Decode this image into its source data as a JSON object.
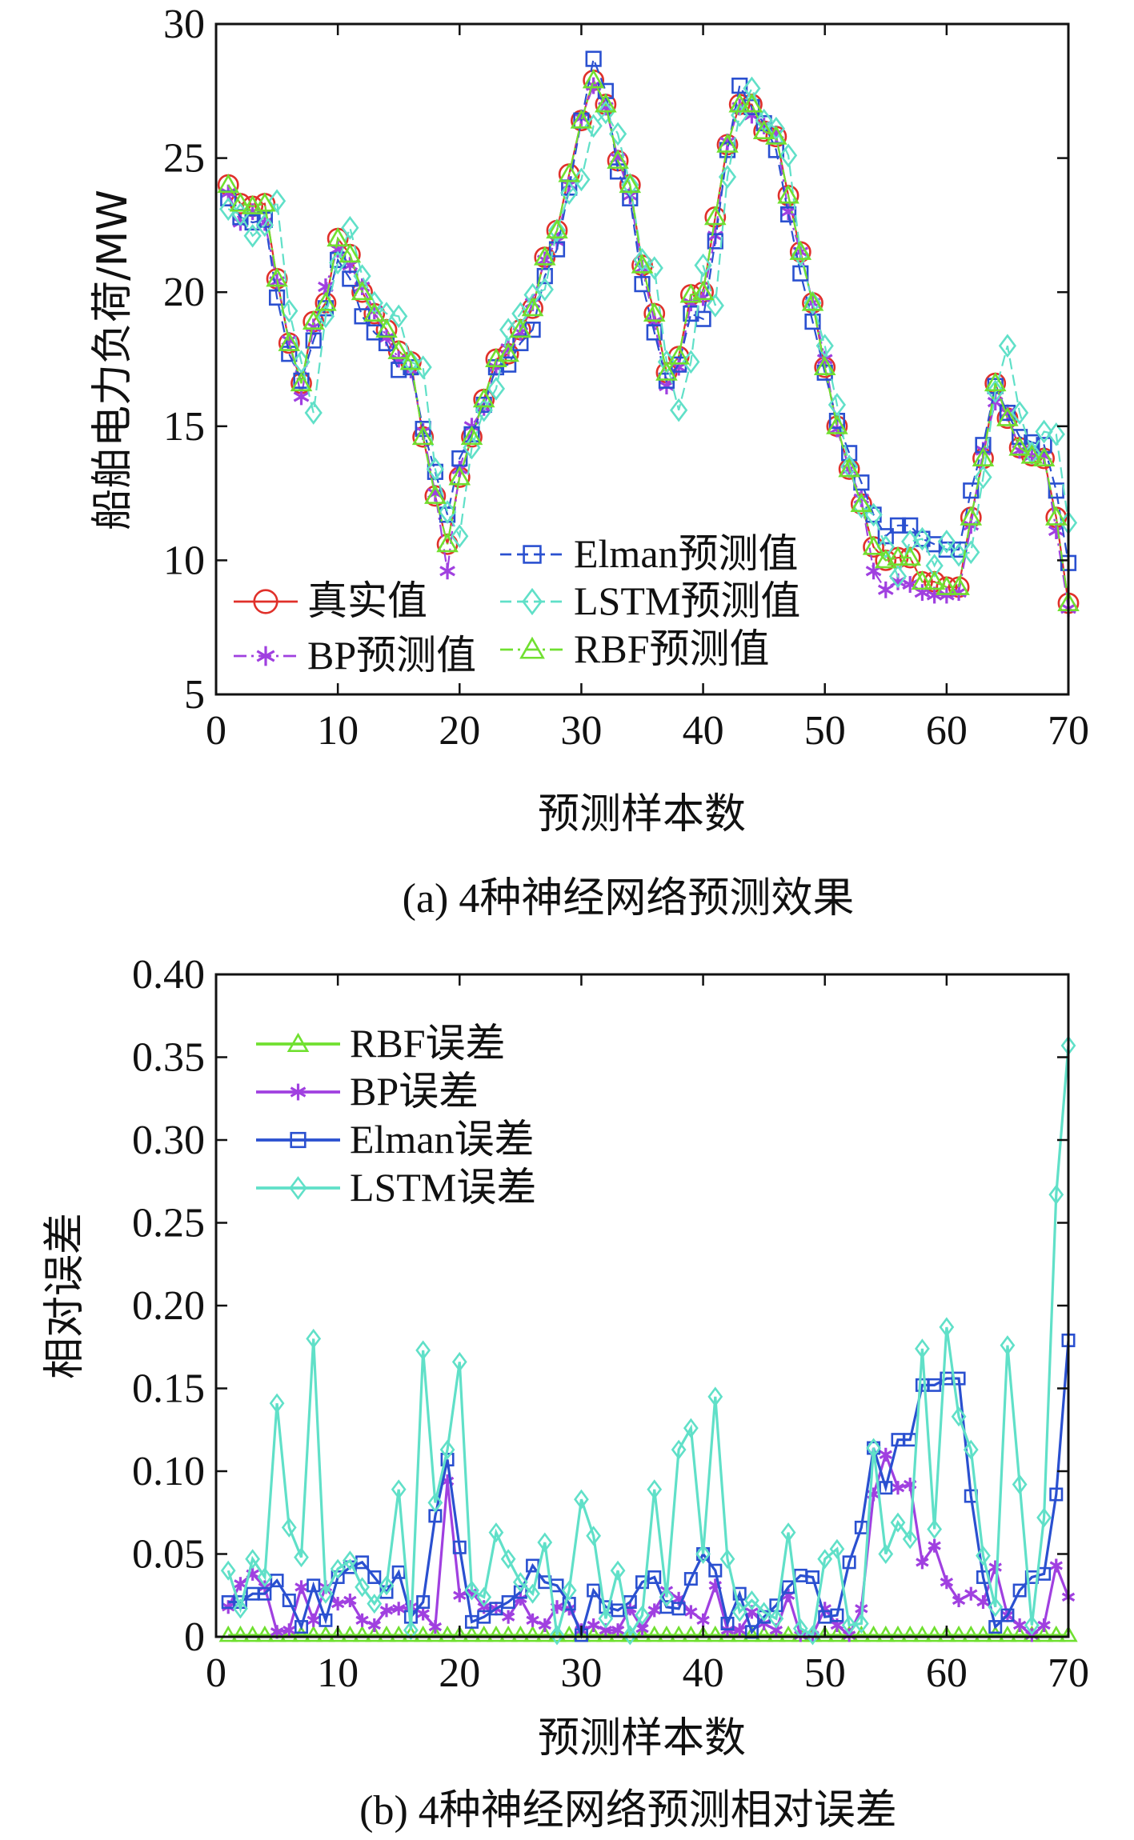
{
  "chart_data": [
    {
      "type": "line",
      "caption": "(a) 4种神经网络预测效果",
      "xlabel": "预测样本数",
      "ylabel": "船舶电力负荷/MW",
      "xlim": [
        0,
        70
      ],
      "ylim": [
        5,
        30
      ],
      "xticks": [
        "0",
        "10",
        "20",
        "30",
        "40",
        "50",
        "60",
        "70"
      ],
      "yticks": [
        "5",
        "10",
        "15",
        "20",
        "25",
        "30"
      ],
      "grid": false,
      "legend_placement": "lower-left",
      "series": [
        {
          "name": "真实值",
          "color": "#e0302a",
          "marker": "circle",
          "dash": "solid",
          "values": [
            24.0,
            23.3,
            23.2,
            23.3,
            20.5,
            18.1,
            16.6,
            18.9,
            19.6,
            22.0,
            21.4,
            20.0,
            19.2,
            18.6,
            17.8,
            17.4,
            14.6,
            12.4,
            10.6,
            13.1,
            14.6,
            16.0,
            17.5,
            17.7,
            18.6,
            19.4,
            21.3,
            22.3,
            24.4,
            26.4,
            27.9,
            27.0,
            24.9,
            24.0,
            21.0,
            19.2,
            17.0,
            17.6,
            19.9,
            20.0,
            22.8,
            25.5,
            27.0,
            27.0,
            26.0,
            25.8,
            23.6,
            21.5,
            19.6,
            17.2,
            15.0,
            13.4,
            12.1,
            10.5,
            10.0,
            10.1,
            10.1,
            9.2,
            9.2,
            9.0,
            9.0,
            11.6,
            13.8,
            16.6,
            15.3,
            14.2,
            13.9,
            13.8,
            11.6,
            8.4
          ]
        },
        {
          "name": "BP预测值",
          "color": "#a040e0",
          "marker": "asterisk",
          "dash": "dashdot",
          "values": [
            23.7,
            22.6,
            23.0,
            22.6,
            20.4,
            18.2,
            16.1,
            18.7,
            20.2,
            21.6,
            21.0,
            20.2,
            19.3,
            18.3,
            17.5,
            17.1,
            14.8,
            12.5,
            9.6,
            13.4,
            15.0,
            15.7,
            17.2,
            17.9,
            18.5,
            19.6,
            21.2,
            21.9,
            24.0,
            26.5,
            27.7,
            26.9,
            25.0,
            23.6,
            20.9,
            18.9,
            16.5,
            17.2,
            19.6,
            19.8,
            22.1,
            25.6,
            26.9,
            26.6,
            26.2,
            25.9,
            23.0,
            21.5,
            19.6,
            17.5,
            14.9,
            13.4,
            12.3,
            9.6,
            8.9,
            9.2,
            9.1,
            8.8,
            8.7,
            8.7,
            8.8,
            11.3,
            14.1,
            15.9,
            15.5,
            14.1,
            13.9,
            13.9,
            11.1,
            8.2
          ]
        },
        {
          "name": "Elman预测值",
          "color": "#2a50d0",
          "marker": "square",
          "dash": "dashed",
          "values": [
            23.5,
            22.8,
            22.6,
            22.7,
            19.8,
            17.7,
            16.7,
            18.2,
            19.4,
            21.2,
            20.5,
            19.1,
            18.5,
            18.1,
            17.1,
            17.2,
            14.9,
            13.3,
            11.7,
            13.8,
            14.7,
            15.8,
            17.2,
            17.3,
            18.1,
            18.6,
            20.6,
            21.6,
            23.9,
            26.4,
            28.7,
            27.5,
            24.5,
            23.5,
            20.3,
            18.5,
            16.7,
            17.3,
            19.2,
            19.0,
            21.9,
            25.3,
            27.7,
            26.9,
            26.3,
            25.3,
            22.9,
            20.7,
            18.9,
            17.0,
            15.2,
            14.0,
            12.9,
            11.7,
            10.9,
            11.3,
            11.3,
            10.8,
            10.6,
            10.4,
            10.4,
            12.6,
            14.3,
            16.5,
            15.5,
            14.6,
            14.4,
            14.3,
            12.6,
            9.9
          ]
        },
        {
          "name": "LSTM预测值",
          "color": "#60e0c8",
          "marker": "diamond",
          "dash": "dashed",
          "values": [
            23.1,
            22.9,
            22.1,
            22.5,
            23.4,
            19.3,
            17.4,
            15.5,
            19.1,
            21.1,
            22.4,
            20.6,
            19.6,
            19.2,
            19.1,
            17.4,
            17.2,
            13.4,
            11.8,
            10.9,
            14.2,
            15.6,
            16.4,
            18.6,
            19.2,
            19.9,
            20.1,
            22.3,
            23.7,
            24.2,
            26.2,
            26.7,
            25.9,
            24.0,
            21.2,
            20.9,
            17.4,
            15.6,
            17.4,
            21.0,
            19.5,
            24.3,
            26.6,
            27.6,
            26.4,
            26.1,
            25.1,
            21.4,
            19.6,
            18.0,
            15.8,
            13.5,
            12.0,
            11.7,
            10.5,
            9.4,
            10.7,
            10.8,
            9.8,
            10.7,
            10.2,
            10.3,
            13.1,
            16.3,
            18.0,
            15.5,
            14.0,
            14.8,
            14.7,
            11.4
          ]
        },
        {
          "name": "RBF预测值",
          "color": "#70e030",
          "marker": "triangle",
          "dash": "dashdot",
          "values": [
            24.0,
            23.3,
            23.2,
            23.3,
            20.5,
            18.1,
            16.6,
            18.9,
            19.6,
            22.0,
            21.4,
            20.0,
            19.2,
            18.6,
            17.8,
            17.4,
            14.6,
            12.4,
            10.6,
            13.1,
            14.6,
            16.0,
            17.5,
            17.7,
            18.6,
            19.4,
            21.3,
            22.3,
            24.4,
            26.4,
            27.9,
            27.0,
            24.9,
            24.0,
            21.0,
            19.2,
            17.0,
            17.6,
            19.9,
            20.0,
            22.8,
            25.5,
            27.0,
            27.0,
            26.0,
            25.8,
            23.6,
            21.5,
            19.6,
            17.2,
            15.0,
            13.4,
            12.1,
            10.5,
            10.0,
            10.1,
            10.1,
            9.2,
            9.2,
            9.0,
            9.0,
            11.6,
            13.8,
            16.6,
            15.3,
            14.2,
            13.9,
            13.8,
            11.6,
            8.4
          ]
        }
      ]
    },
    {
      "type": "line",
      "caption": "(b) 4种神经网络预测相对误差",
      "xlabel": "预测样本数",
      "ylabel": "相对误差",
      "xlim": [
        0,
        70
      ],
      "ylim": [
        0,
        0.4
      ],
      "xticks": [
        "0",
        "10",
        "20",
        "30",
        "40",
        "50",
        "60",
        "70"
      ],
      "yticks": [
        "0",
        "0.05",
        "0.10",
        "0.15",
        "0.20",
        "0.25",
        "0.30",
        "0.35",
        "0.40"
      ],
      "grid": false,
      "legend_placement": "top-left",
      "series": [
        {
          "name": "RBF误差",
          "color": "#70e030",
          "marker": "triangle",
          "dash": "solid",
          "values": [
            0.001,
            0.001,
            0.001,
            0.001,
            0.001,
            0.001,
            0.001,
            0.001,
            0.001,
            0.001,
            0.001,
            0.001,
            0.001,
            0.001,
            0.001,
            0.001,
            0.001,
            0.001,
            0.001,
            0.001,
            0.001,
            0.001,
            0.001,
            0.001,
            0.001,
            0.001,
            0.001,
            0.001,
            0.001,
            0.001,
            0.001,
            0.001,
            0.001,
            0.001,
            0.001,
            0.001,
            0.001,
            0.001,
            0.001,
            0.001,
            0.001,
            0.001,
            0.001,
            0.001,
            0.001,
            0.001,
            0.001,
            0.001,
            0.001,
            0.001,
            0.001,
            0.001,
            0.001,
            0.001,
            0.001,
            0.001,
            0.001,
            0.001,
            0.001,
            0.001,
            0.001,
            0.001,
            0.001,
            0.001,
            0.001,
            0.001,
            0.001,
            0.001,
            0.001,
            0.001
          ]
        },
        {
          "name": "BP误差",
          "color": "#a040e0",
          "marker": "asterisk",
          "dash": "solid",
          "values": [
            0.018,
            0.032,
            0.038,
            0.03,
            0.003,
            0.004,
            0.03,
            0.01,
            0.03,
            0.02,
            0.022,
            0.01,
            0.007,
            0.016,
            0.017,
            0.018,
            0.014,
            0.006,
            0.094,
            0.025,
            0.027,
            0.018,
            0.017,
            0.012,
            0.023,
            0.01,
            0.007,
            0.018,
            0.017,
            0.004,
            0.007,
            0.004,
            0.004,
            0.017,
            0.005,
            0.016,
            0.028,
            0.023,
            0.015,
            0.01,
            0.031,
            0.004,
            0.004,
            0.015,
            0.008,
            0.004,
            0.025,
            0.001,
            0.001,
            0.017,
            0.007,
            0.001,
            0.017,
            0.086,
            0.11,
            0.09,
            0.092,
            0.045,
            0.055,
            0.033,
            0.022,
            0.026,
            0.021,
            0.042,
            0.013,
            0.007,
            0.001,
            0.007,
            0.043,
            0.024
          ]
        },
        {
          "name": "Elman误差",
          "color": "#2a50d0",
          "marker": "square",
          "dash": "solid",
          "values": [
            0.021,
            0.021,
            0.026,
            0.026,
            0.034,
            0.022,
            0.006,
            0.031,
            0.01,
            0.036,
            0.042,
            0.045,
            0.036,
            0.027,
            0.039,
            0.012,
            0.021,
            0.073,
            0.107,
            0.054,
            0.009,
            0.012,
            0.017,
            0.021,
            0.027,
            0.043,
            0.033,
            0.031,
            0.02,
            0.001,
            0.028,
            0.018,
            0.016,
            0.021,
            0.033,
            0.036,
            0.018,
            0.017,
            0.035,
            0.05,
            0.04,
            0.008,
            0.026,
            0.003,
            0.012,
            0.019,
            0.03,
            0.037,
            0.036,
            0.012,
            0.013,
            0.045,
            0.066,
            0.114,
            0.09,
            0.119,
            0.119,
            0.152,
            0.152,
            0.156,
            0.156,
            0.085,
            0.036,
            0.006,
            0.013,
            0.028,
            0.036,
            0.038,
            0.086,
            0.179
          ]
        },
        {
          "name": "LSTM误差",
          "color": "#60e0c8",
          "marker": "diamond",
          "dash": "solid",
          "values": [
            0.04,
            0.017,
            0.047,
            0.036,
            0.141,
            0.066,
            0.048,
            0.18,
            0.026,
            0.041,
            0.046,
            0.03,
            0.02,
            0.031,
            0.089,
            0.004,
            0.173,
            0.081,
            0.113,
            0.166,
            0.028,
            0.024,
            0.063,
            0.047,
            0.033,
            0.026,
            0.057,
            0.001,
            0.028,
            0.083,
            0.061,
            0.011,
            0.04,
            0.001,
            0.013,
            0.089,
            0.024,
            0.113,
            0.126,
            0.05,
            0.145,
            0.047,
            0.015,
            0.022,
            0.015,
            0.011,
            0.063,
            0.005,
            0.001,
            0.047,
            0.053,
            0.007,
            0.008,
            0.114,
            0.05,
            0.069,
            0.059,
            0.174,
            0.065,
            0.187,
            0.133,
            0.113,
            0.049,
            0.018,
            0.176,
            0.092,
            0.007,
            0.072,
            0.267,
            0.357
          ]
        }
      ]
    }
  ]
}
